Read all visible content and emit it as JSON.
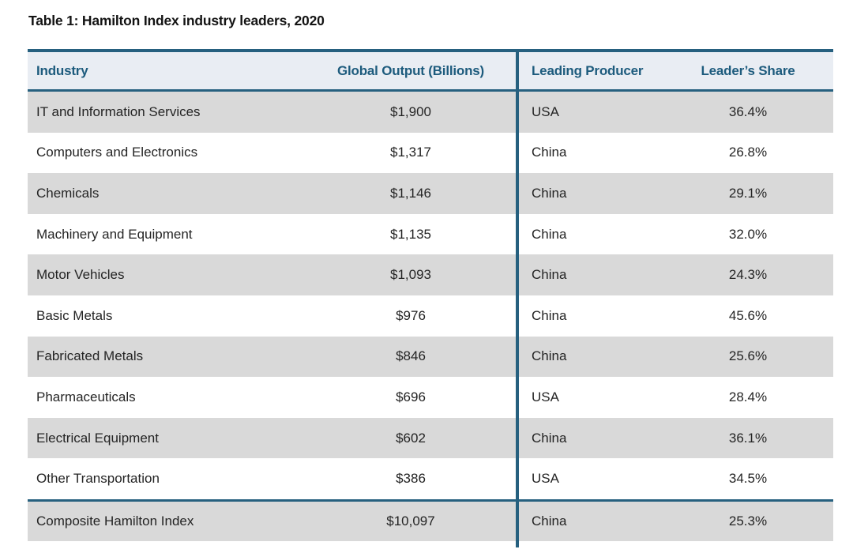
{
  "title": "Table 1: Hamilton Index industry leaders, 2020",
  "table": {
    "columns": {
      "industry": "Industry",
      "output": "Global Output (Billions)",
      "producer": "Leading Producer",
      "share": "Leader’s Share"
    },
    "rows": [
      {
        "industry": "IT and Information Services",
        "output": "$1,900",
        "producer": "USA",
        "share": "36.4%"
      },
      {
        "industry": "Computers and Electronics",
        "output": "$1,317",
        "producer": "China",
        "share": "26.8%"
      },
      {
        "industry": "Chemicals",
        "output": "$1,146",
        "producer": "China",
        "share": "29.1%"
      },
      {
        "industry": "Machinery and Equipment",
        "output": "$1,135",
        "producer": "China",
        "share": "32.0%"
      },
      {
        "industry": "Motor Vehicles",
        "output": "$1,093",
        "producer": "China",
        "share": "24.3%"
      },
      {
        "industry": "Basic Metals",
        "output": "$976",
        "producer": "China",
        "share": "45.6%"
      },
      {
        "industry": "Fabricated Metals",
        "output": "$846",
        "producer": "China",
        "share": "25.6%"
      },
      {
        "industry": "Pharmaceuticals",
        "output": "$696",
        "producer": "USA",
        "share": "28.4%"
      },
      {
        "industry": "Electrical Equipment",
        "output": "$602",
        "producer": "China",
        "share": "36.1%"
      },
      {
        "industry": "Other Transportation",
        "output": "$386",
        "producer": "USA",
        "share": "34.5%"
      }
    ],
    "composite": {
      "industry": "Composite Hamilton Index",
      "output": "$10,097",
      "producer": "China",
      "share": "25.3%"
    }
  },
  "colors": {
    "accent_teal": "#26607f",
    "header_background": "#e9edf3",
    "header_text": "#1d5b7d",
    "zebra_gray": "#d9d9d9",
    "body_text": "#242424"
  }
}
